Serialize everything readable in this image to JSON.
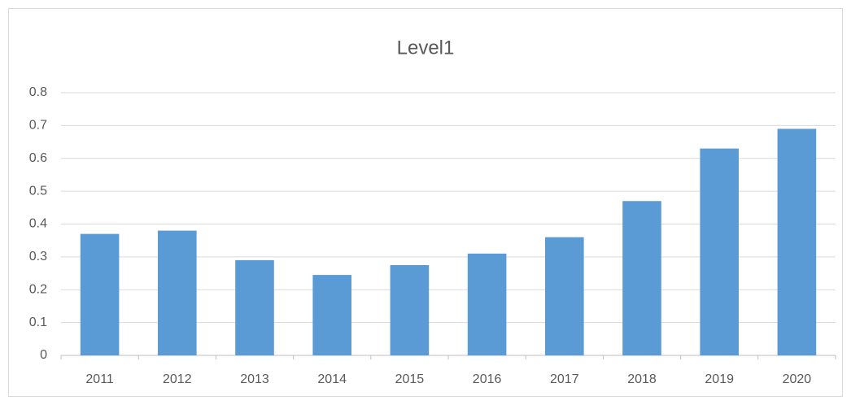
{
  "chart_data": {
    "type": "bar",
    "title": "Level1",
    "categories": [
      "2011",
      "2012",
      "2013",
      "2014",
      "2015",
      "2016",
      "2017",
      "2018",
      "2019",
      "2020"
    ],
    "values": [
      0.37,
      0.38,
      0.29,
      0.245,
      0.275,
      0.31,
      0.36,
      0.47,
      0.63,
      0.69
    ],
    "color": "#5b9bd5",
    "ylim": [
      0,
      0.8
    ],
    "yticks": [
      0,
      0.1,
      0.2,
      0.3,
      0.4,
      0.5,
      0.6,
      0.7,
      0.8
    ],
    "grid": true
  }
}
